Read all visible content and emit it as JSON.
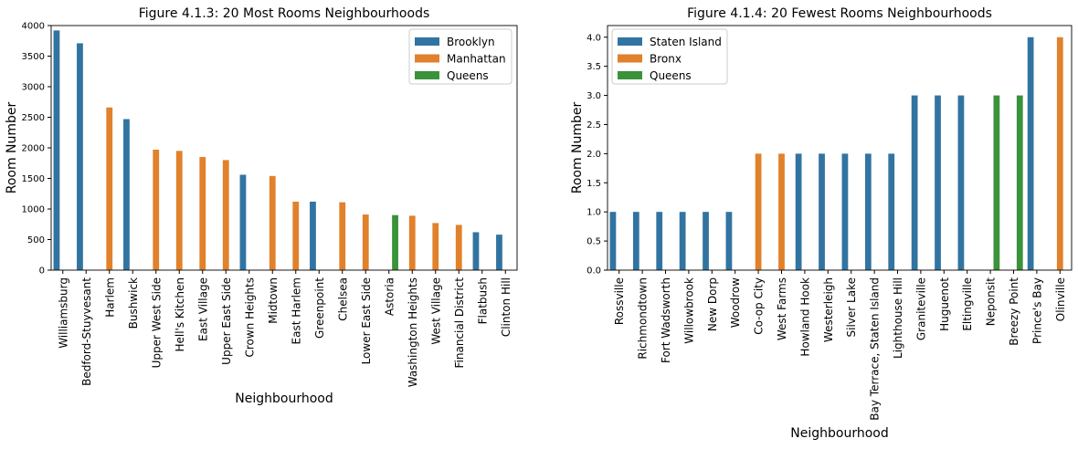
{
  "colors": {
    "Brooklyn": "#3274a1",
    "Manhattan": "#e1812c",
    "Queens": "#3a923a",
    "Staten Island": "#3274a1",
    "Bronx": "#e1812c"
  },
  "chart_data": [
    {
      "type": "bar",
      "title": "Figure 4.1.3: 20 Most Rooms Neighbourhoods",
      "xlabel": "Neighbourhood",
      "ylabel": "Room Number",
      "ylim": [
        0,
        4000
      ],
      "yticks": [
        "0",
        "500",
        "1000",
        "1500",
        "2000",
        "2500",
        "3000",
        "3500",
        "4000"
      ],
      "yticks_values": [
        0,
        500,
        1000,
        1500,
        2000,
        2500,
        3000,
        3500,
        4000
      ],
      "hue_order": [
        "Brooklyn",
        "Manhattan",
        "Queens"
      ],
      "legend": {
        "entries": [
          "Brooklyn",
          "Manhattan",
          "Queens"
        ],
        "placement": "top-right"
      },
      "grid": false,
      "categories": [
        "Williamsburg",
        "Bedford-Stuyvesant",
        "Harlem",
        "Bushwick",
        "Upper West Side",
        "Hell's Kitchen",
        "East Village",
        "Upper East Side",
        "Crown Heights",
        "Midtown",
        "East Harlem",
        "Greenpoint",
        "Chelsea",
        "Lower East Side",
        "Astoria",
        "Washington Heights",
        "West Village",
        "Financial District",
        "Flatbush",
        "Clinton Hill"
      ],
      "groups": [
        "Brooklyn",
        "Brooklyn",
        "Manhattan",
        "Brooklyn",
        "Manhattan",
        "Manhattan",
        "Manhattan",
        "Manhattan",
        "Brooklyn",
        "Manhattan",
        "Manhattan",
        "Brooklyn",
        "Manhattan",
        "Manhattan",
        "Queens",
        "Manhattan",
        "Manhattan",
        "Manhattan",
        "Brooklyn",
        "Brooklyn"
      ],
      "values": [
        3920,
        3710,
        2660,
        2470,
        1970,
        1950,
        1850,
        1800,
        1560,
        1540,
        1120,
        1120,
        1110,
        910,
        900,
        890,
        770,
        740,
        620,
        580
      ]
    },
    {
      "type": "bar",
      "title": "Figure 4.1.4: 20 Fewest Rooms Neighbourhoods",
      "xlabel": "Neighbourhood",
      "ylabel": "Room Number",
      "ylim": [
        0,
        4.2
      ],
      "yticks": [
        "0.0",
        "0.5",
        "1.0",
        "1.5",
        "2.0",
        "2.5",
        "3.0",
        "3.5",
        "4.0"
      ],
      "yticks_values": [
        0,
        0.5,
        1.0,
        1.5,
        2.0,
        2.5,
        3.0,
        3.5,
        4.0
      ],
      "hue_order": [
        "Staten Island",
        "Bronx",
        "Queens"
      ],
      "legend": {
        "entries": [
          "Staten Island",
          "Bronx",
          "Queens"
        ],
        "placement": "top-left"
      },
      "grid": false,
      "categories": [
        "Rossville",
        "Richmondtown",
        "Fort Wadsworth",
        "Willowbrook",
        "New Dorp",
        "Woodrow",
        "Co-op City",
        "West Farms",
        "Howland Hook",
        "Westerleigh",
        "Silver Lake",
        "Bay Terrace, Staten Island",
        "Lighthouse Hill",
        "Graniteville",
        "Huguenot",
        "Eltingville",
        "Neponsit",
        "Breezy Point",
        "Prince's Bay",
        "Olinville"
      ],
      "groups": [
        "Staten Island",
        "Staten Island",
        "Staten Island",
        "Staten Island",
        "Staten Island",
        "Staten Island",
        "Bronx",
        "Bronx",
        "Staten Island",
        "Staten Island",
        "Staten Island",
        "Staten Island",
        "Staten Island",
        "Staten Island",
        "Staten Island",
        "Staten Island",
        "Queens",
        "Queens",
        "Staten Island",
        "Bronx"
      ],
      "values": [
        1,
        1,
        1,
        1,
        1,
        1,
        2,
        2,
        2,
        2,
        2,
        2,
        2,
        3,
        3,
        3,
        3,
        3,
        4,
        4
      ]
    }
  ]
}
